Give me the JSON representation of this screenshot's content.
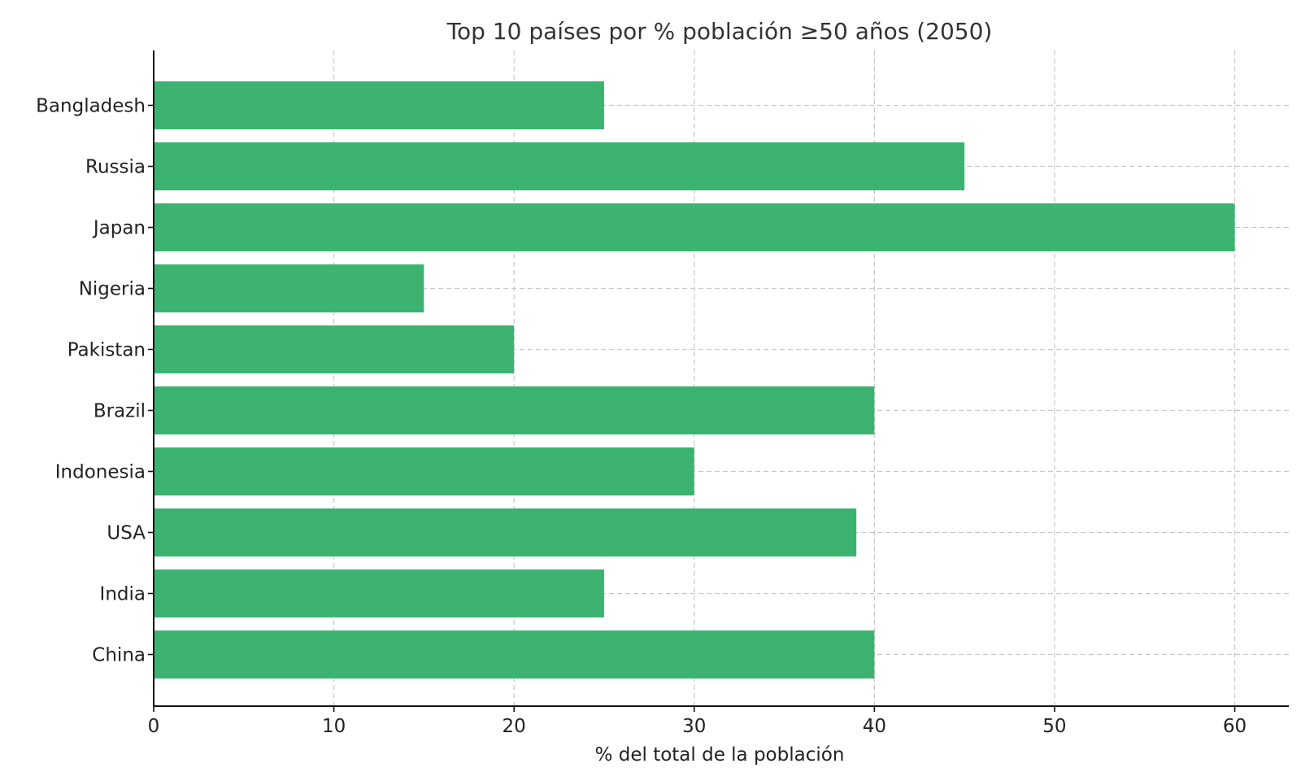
{
  "chart_data": {
    "type": "bar",
    "orientation": "horizontal",
    "title": "Top 10 países por % población ≥50 años (2050)",
    "xlabel": "% del total de la población",
    "ylabel": "",
    "categories": [
      "Bangladesh",
      "Russia",
      "Japan",
      "Nigeria",
      "Pakistan",
      "Brazil",
      "Indonesia",
      "USA",
      "India",
      "China"
    ],
    "values": [
      25,
      45,
      60,
      15,
      20,
      40,
      30,
      39,
      25,
      40
    ],
    "xlim": [
      0,
      63
    ],
    "xticks": [
      0,
      10,
      20,
      30,
      40,
      50,
      60
    ],
    "grid": true,
    "bar_color": "#3cb371"
  }
}
